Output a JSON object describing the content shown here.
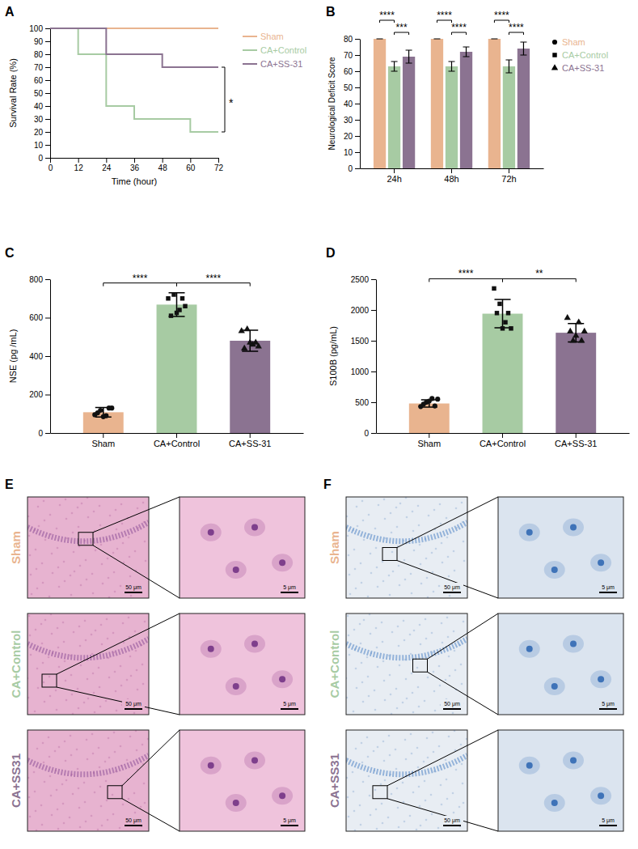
{
  "chart_data": [
    {
      "panel_label": "A",
      "type": "line",
      "line_style": "step",
      "x_label": "Time (hour)",
      "y_label": "Survival Rate (%)",
      "xlim": [
        0,
        72
      ],
      "xticks": [
        0,
        12,
        24,
        36,
        48,
        60,
        72
      ],
      "ylim": [
        0,
        100
      ],
      "yticks": [
        0,
        10,
        20,
        30,
        40,
        50,
        60,
        70,
        80,
        90,
        100
      ],
      "legend": "right",
      "series": [
        {
          "name": "Sham",
          "color": "#E9B48F",
          "x": [
            0,
            72
          ],
          "values": [
            100,
            100
          ]
        },
        {
          "name": "CA+Control",
          "color": "#A7CBA3",
          "x": [
            0,
            12,
            24,
            36,
            60,
            72
          ],
          "values": [
            100,
            80,
            40,
            30,
            20,
            20
          ]
        },
        {
          "name": "CA+SS-31",
          "color": "#8B7391",
          "x": [
            0,
            24,
            48,
            72
          ],
          "values": [
            100,
            80,
            70,
            70
          ]
        }
      ],
      "annotations": [
        {
          "text": "*",
          "x": 72,
          "y": [
            70,
            20
          ]
        }
      ]
    },
    {
      "panel_label": "B",
      "type": "bar",
      "y_label": "Neurological Deficit Score",
      "categories": [
        "24h",
        "48h",
        "72h"
      ],
      "ylim": [
        0,
        80
      ],
      "yticks": [
        0,
        10,
        20,
        30,
        40,
        50,
        60,
        70,
        80
      ],
      "legend": "right",
      "series": [
        {
          "name": "Sham",
          "color": "#E9B48F",
          "marker": "circle",
          "values": [
            80,
            80,
            80
          ],
          "errors": [
            0,
            0,
            0
          ]
        },
        {
          "name": "CA+Control",
          "color": "#A7CBA3",
          "marker": "square",
          "values": [
            63,
            63,
            63
          ],
          "errors": [
            3,
            3,
            4
          ]
        },
        {
          "name": "CA+SS-31",
          "color": "#8B7391",
          "marker": "triangle",
          "values": [
            69,
            72,
            74
          ],
          "errors": [
            4,
            3,
            4
          ]
        }
      ],
      "annotations": [
        {
          "text": "****",
          "category": 0,
          "series": [
            0,
            1
          ]
        },
        {
          "text": "***",
          "category": 0,
          "series": [
            1,
            2
          ]
        },
        {
          "text": "****",
          "category": 1,
          "series": [
            0,
            1
          ]
        },
        {
          "text": "****",
          "category": 1,
          "series": [
            1,
            2
          ]
        },
        {
          "text": "****",
          "category": 2,
          "series": [
            0,
            1
          ]
        },
        {
          "text": "****",
          "category": 2,
          "series": [
            1,
            2
          ]
        }
      ]
    },
    {
      "panel_label": "C",
      "type": "bar",
      "y_label": "NSE (pg /mL)",
      "categories": [
        "Sham",
        "CA+Control",
        "CA+SS-31"
      ],
      "colors": [
        "#E9B48F",
        "#A7CBA3",
        "#8B7391"
      ],
      "values": [
        108,
        668,
        480
      ],
      "errors": [
        25,
        62,
        55
      ],
      "points": [
        [
          95,
          118,
          90,
          130,
          105,
          85,
          130
        ],
        [
          700,
          720,
          640,
          660,
          610,
          625,
          700
        ],
        [
          530,
          540,
          460,
          450,
          440,
          470,
          470
        ]
      ],
      "ylim": [
        0,
        800
      ],
      "yticks": [
        0,
        200,
        400,
        600,
        800
      ],
      "annotations": [
        {
          "text": "****",
          "categories": [
            0,
            1
          ]
        },
        {
          "text": "****",
          "categories": [
            1,
            2
          ]
        }
      ]
    },
    {
      "panel_label": "D",
      "type": "bar",
      "y_label": "S100B (pg/mL)",
      "categories": [
        "Sham",
        "CA+Control",
        "CA+SS-31"
      ],
      "colors": [
        "#E9B48F",
        "#A7CBA3",
        "#8B7391"
      ],
      "values": [
        480,
        1940,
        1630
      ],
      "errors": [
        60,
        230,
        150
      ],
      "points": [
        [
          430,
          500,
          560,
          550,
          470,
          520,
          440
        ],
        [
          2350,
          2100,
          1800,
          1700,
          1950,
          1700,
          1950
        ],
        [
          1870,
          1500,
          1800,
          1650,
          1650,
          1580,
          1500
        ]
      ],
      "ylim": [
        0,
        2500
      ],
      "yticks": [
        0,
        500,
        1000,
        1500,
        2000,
        2500
      ],
      "annotations": [
        {
          "text": "****",
          "categories": [
            0,
            1
          ]
        },
        {
          "text": "**",
          "categories": [
            1,
            2
          ]
        }
      ]
    }
  ],
  "micrographs": [
    {
      "panel_label": "E",
      "rows": [
        "Sham",
        "CA+Control",
        "CA+SS31"
      ],
      "colors": [
        "#E9B48F",
        "#A7CBA3",
        "#8B7391"
      ],
      "scale_bars": [
        "50 μm",
        "5 μm"
      ]
    },
    {
      "panel_label": "F",
      "rows": [
        "Sham",
        "CA+Control",
        "CA+SS31"
      ],
      "colors": [
        "#E9B48F",
        "#A7CBA3",
        "#8B7391"
      ],
      "scale_bars": [
        "50 μm",
        "5 μm"
      ]
    }
  ]
}
